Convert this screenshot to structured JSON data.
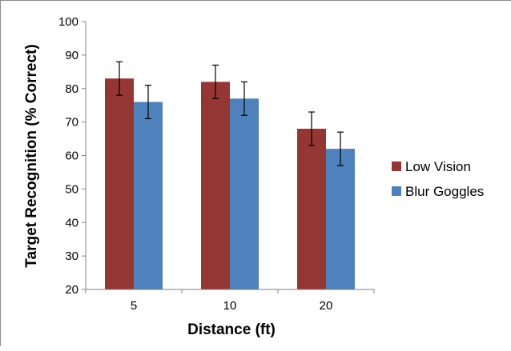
{
  "chart_data": {
    "type": "bar",
    "title": "",
    "xlabel": "Distance (ft)",
    "ylabel": "Target Recognition (% Correct)",
    "categories": [
      "5",
      "10",
      "20"
    ],
    "ylim": [
      20,
      100
    ],
    "yticks": [
      20,
      30,
      40,
      50,
      60,
      70,
      80,
      90,
      100
    ],
    "grid": false,
    "legend_position": "right",
    "series": [
      {
        "name": "Low Vision",
        "color": "#943634",
        "values": [
          83,
          82,
          68
        ],
        "error": [
          5,
          5,
          5
        ]
      },
      {
        "name": "Blur Goggles",
        "color": "#4f81bd",
        "values": [
          76,
          77,
          62
        ],
        "error": [
          5,
          5,
          5
        ]
      }
    ]
  }
}
